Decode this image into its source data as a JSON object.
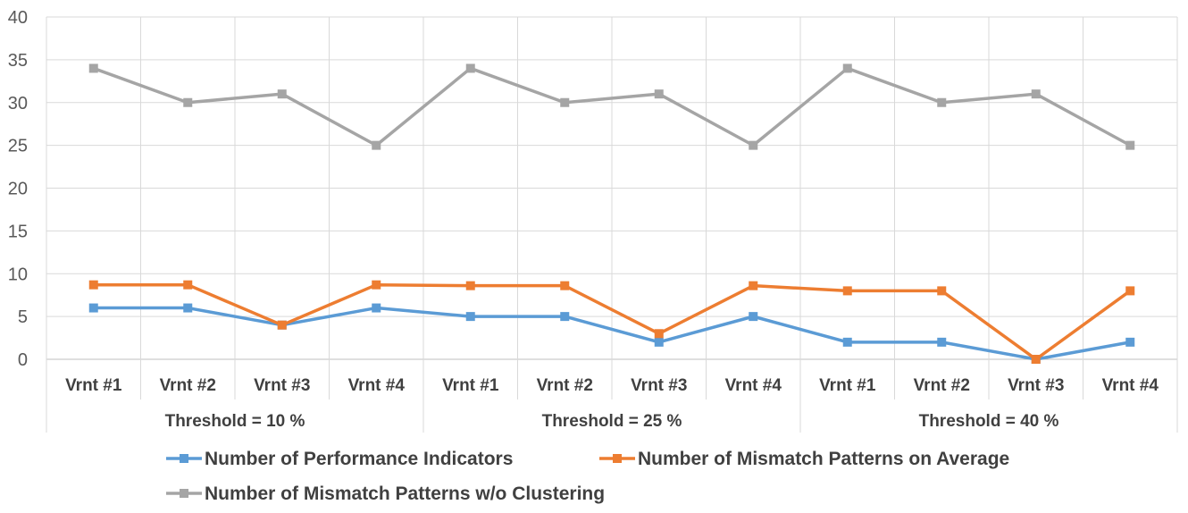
{
  "chart_data": {
    "type": "line",
    "categories": [
      "Vrnt #1",
      "Vrnt #2",
      "Vrnt #3",
      "Vrnt #4",
      "Vrnt #1",
      "Vrnt #2",
      "Vrnt #3",
      "Vrnt #4",
      "Vrnt #1",
      "Vrnt #2",
      "Vrnt #3",
      "Vrnt #4"
    ],
    "groups": [
      {
        "label": "Threshold = 10 %",
        "span": 4
      },
      {
        "label": "Threshold = 25 %",
        "span": 4
      },
      {
        "label": "Threshold = 40 %",
        "span": 4
      }
    ],
    "series": [
      {
        "name": "Number of Performance Indicators",
        "color": "#5b9bd5",
        "values": [
          6,
          6,
          4,
          6,
          5,
          5,
          2,
          5,
          2,
          2,
          0,
          2
        ]
      },
      {
        "name": "Number of Mismatch Patterns on Average",
        "color": "#ed7d31",
        "values": [
          8.7,
          8.7,
          4,
          8.7,
          8.6,
          8.6,
          3,
          8.6,
          8,
          8,
          0,
          8
        ]
      },
      {
        "name": "Number of Mismatch Patterns w/o Clustering",
        "color": "#a5a5a5",
        "values": [
          34,
          30,
          31,
          25,
          34,
          30,
          31,
          25,
          34,
          30,
          31,
          25
        ]
      }
    ],
    "yticks": [
      0,
      5,
      10,
      15,
      20,
      25,
      30,
      35,
      40
    ],
    "ylim": [
      0,
      40
    ],
    "grid": true,
    "legend": "bottom"
  }
}
